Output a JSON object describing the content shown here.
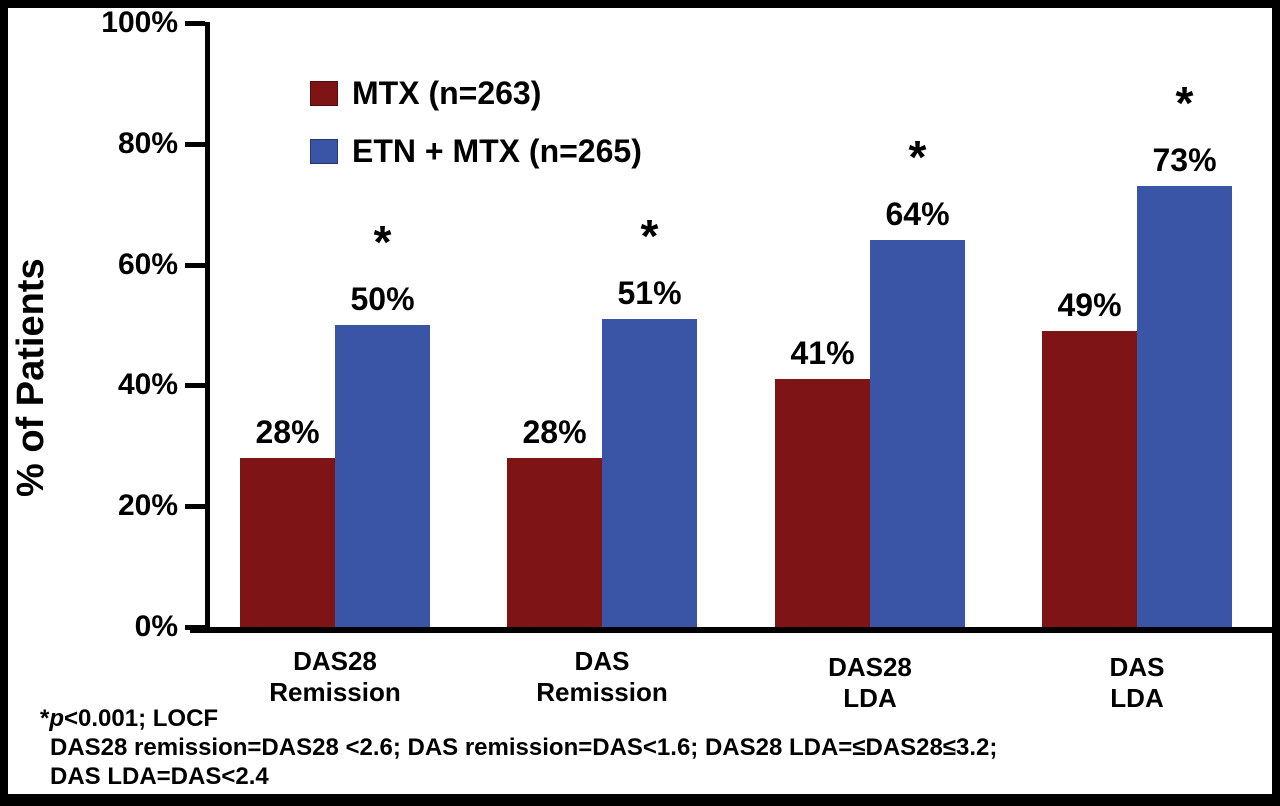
{
  "chart_data": {
    "type": "bar",
    "title": "",
    "xlabel": "",
    "ylabel": "% of Patients",
    "ylim": [
      0,
      100
    ],
    "ytick_labels": [
      "0%",
      "20%",
      "40%",
      "60%",
      "80%",
      "100%"
    ],
    "ytick_values": [
      0,
      20,
      40,
      60,
      80,
      100
    ],
    "grid": false,
    "legend_position": "upper-left-inside",
    "categories": [
      {
        "line1": "DAS28",
        "line2": "Remission"
      },
      {
        "line1": "DAS",
        "line2": "Remission"
      },
      {
        "line1": "DAS28",
        "line2": "LDA"
      },
      {
        "line1": "DAS",
        "line2": "LDA"
      }
    ],
    "series": [
      {
        "name": "MTX (n=263)",
        "color": "#7E1416",
        "values": [
          28,
          28,
          41,
          49
        ],
        "labels": [
          "28%",
          "28%",
          "41%",
          "49%"
        ],
        "significant": [
          false,
          false,
          false,
          false
        ]
      },
      {
        "name": "ETN + MTX (n=265)",
        "color": "#3A55A5",
        "values": [
          50,
          51,
          64,
          73
        ],
        "labels": [
          "50%",
          "51%",
          "64%",
          "73%"
        ],
        "significant": [
          true,
          true,
          true,
          true
        ]
      }
    ],
    "significance_marker": "*"
  },
  "footnotes": {
    "line1_star": "*",
    "line1_p": "p",
    "line1_rest": "<0.001; LOCF",
    "line2": "DAS28 remission=DAS28 <2.6; DAS remission=DAS<1.6; DAS28 LDA=≤DAS28≤3.2;",
    "line3": "DAS LDA=DAS<2.4"
  }
}
